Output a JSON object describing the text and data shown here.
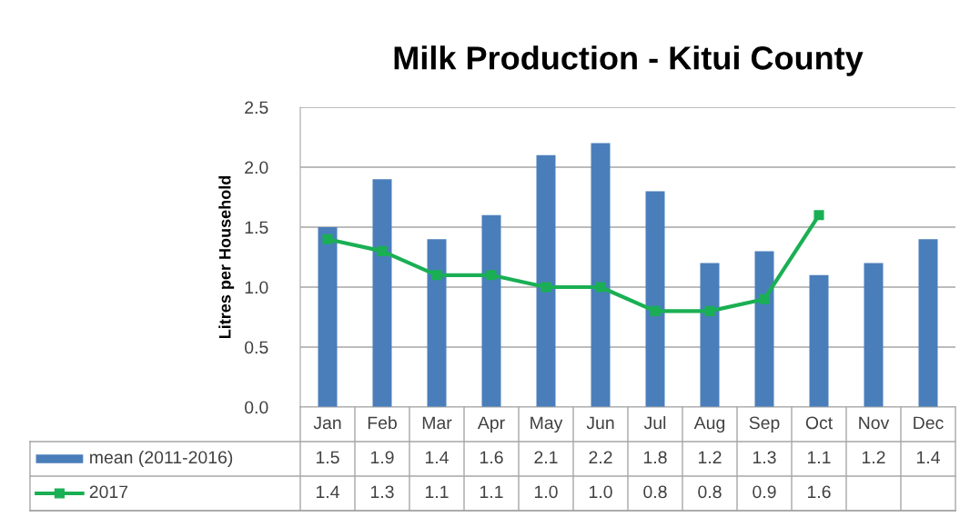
{
  "chart_data": {
    "type": "bar",
    "title": "Milk Production - Kitui County",
    "ylabel": "Litres per Household",
    "categories": [
      "Jan",
      "Feb",
      "Mar",
      "Apr",
      "May",
      "Jun",
      "Jul",
      "Aug",
      "Sep",
      "Oct",
      "Nov",
      "Dec"
    ],
    "series": [
      {
        "name": "mean (2011-2016)",
        "color": "#4a7ebb",
        "values": [
          1.5,
          1.9,
          1.4,
          1.6,
          2.1,
          2.2,
          1.8,
          1.2,
          1.3,
          1.1,
          1.2,
          1.4
        ],
        "value_labels": [
          "1.5",
          "1.9",
          "1.4",
          "1.6",
          "2.1",
          "2.2",
          "1.8",
          "1.2",
          "1.3",
          "1.1",
          "1.2",
          "1.4"
        ]
      },
      {
        "name": "2017",
        "type": "line",
        "color": "#1aaf54",
        "marker": "square",
        "values": [
          1.4,
          1.3,
          1.1,
          1.1,
          1.0,
          1.0,
          0.8,
          0.8,
          0.9,
          1.6,
          null,
          null
        ],
        "value_labels": [
          "1.4",
          "1.3",
          "1.1",
          "1.1",
          "1.0",
          "1.0",
          "0.8",
          "0.8",
          "0.9",
          "1.6",
          null,
          null
        ]
      }
    ],
    "ylim": [
      0,
      2.5
    ],
    "yticks": [
      "0.0",
      "0.5",
      "1.0",
      "1.5",
      "2.0",
      "2.5"
    ],
    "grid": "y",
    "legend": "bottom"
  }
}
